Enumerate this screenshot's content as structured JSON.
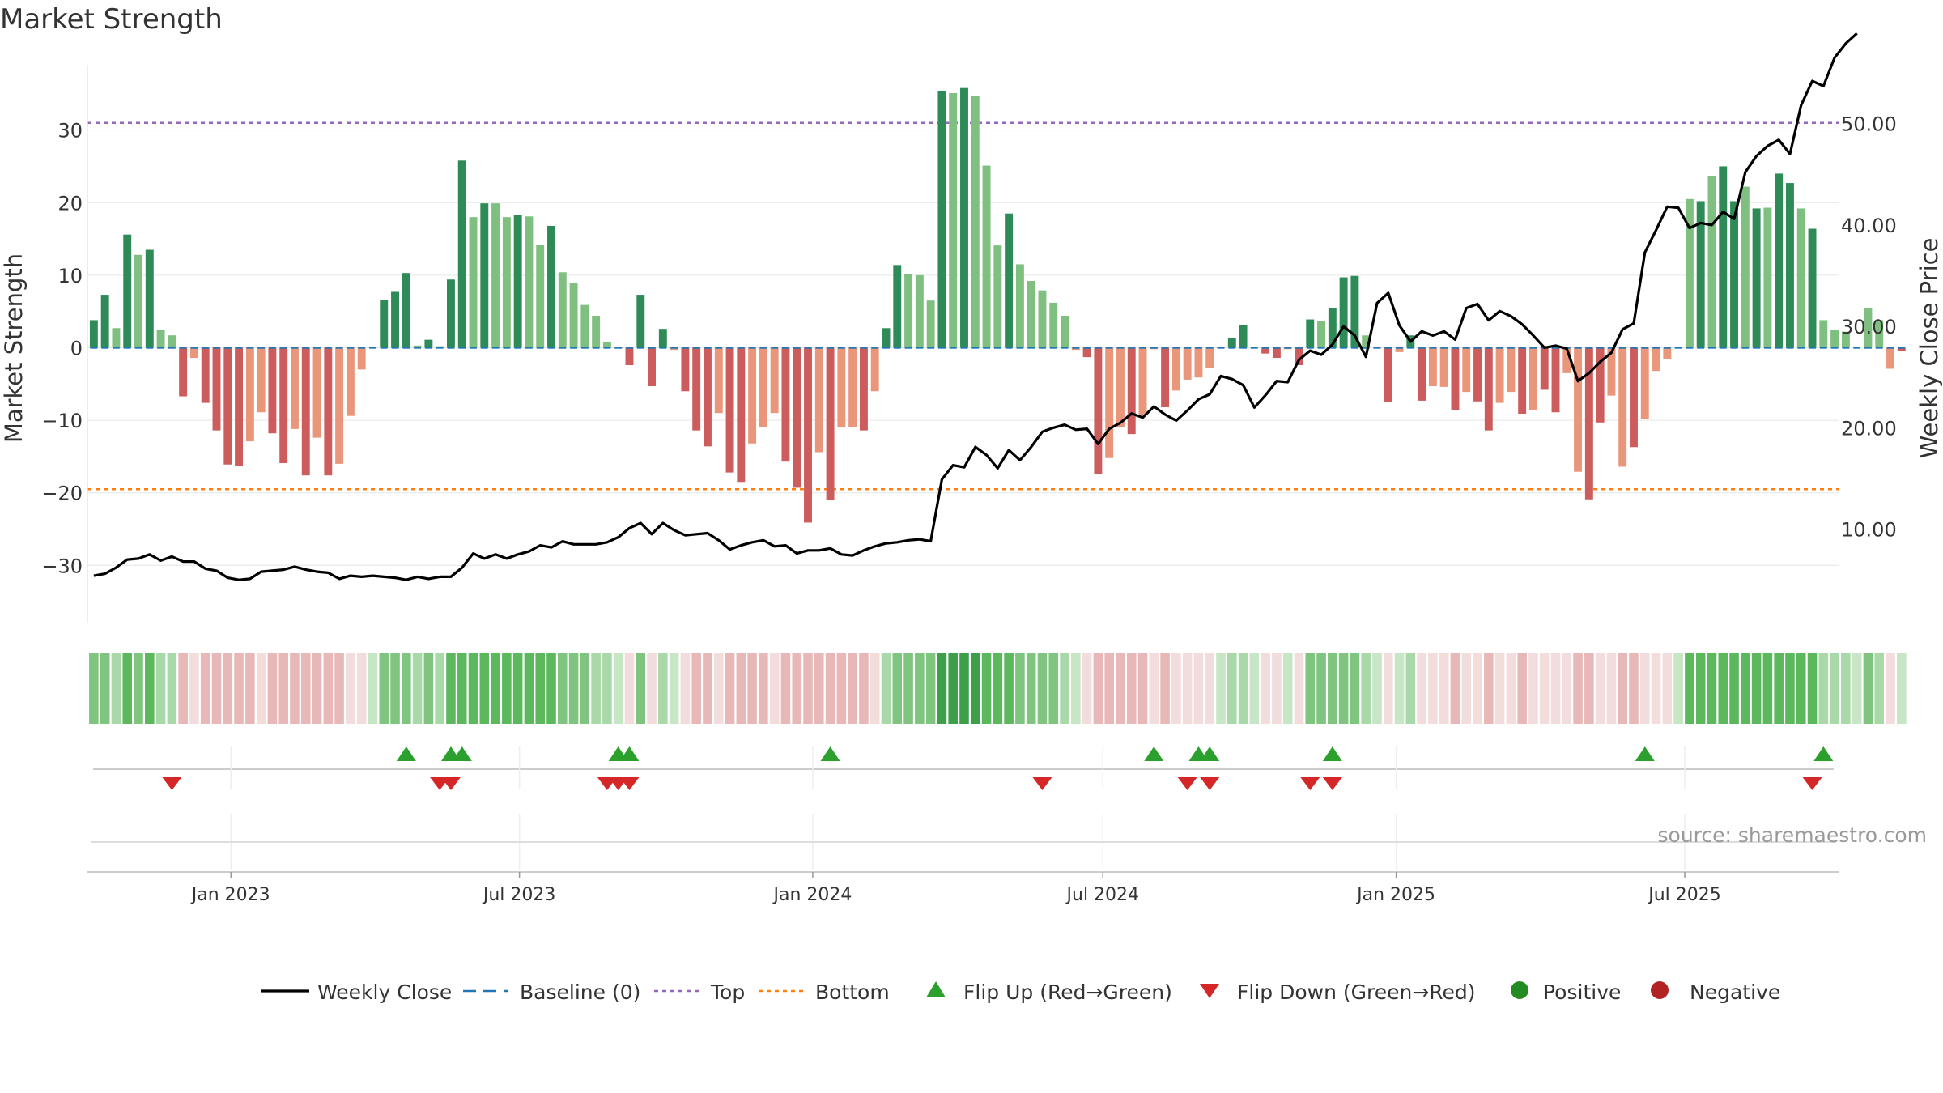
{
  "title": "Market Strength",
  "source": "source: sharemaestro.com",
  "colors": {
    "strong_green": "#2e8b57",
    "light_green": "#7fbf7f",
    "strong_red": "#cd5c5c",
    "light_red": "#e9967a",
    "close_line": "#000000",
    "baseline": "#1f77b4",
    "top": "#9467bd",
    "bottom": "#ff7f0e",
    "flip_up": "#2ca02c",
    "flip_down": "#d62728",
    "positive": "#228b22",
    "negative": "#b22222"
  },
  "chart_data": {
    "type": "bar",
    "ylabel_left": "Market Strength",
    "ylabel_right": "Weekly Close Price",
    "y_left_ticks": [
      30,
      20,
      10,
      0,
      -10,
      -20,
      -30
    ],
    "y_left_tick_labels": [
      "30",
      "20",
      "10",
      "0",
      "−10",
      "−20",
      "−30"
    ],
    "y_left_range": [
      -38,
      39
    ],
    "y_right_ticks": [
      10,
      20,
      30,
      40,
      50
    ],
    "y_right_tick_labels": [
      "10.00",
      "20.00",
      "30.00",
      "40.00",
      "50.00"
    ],
    "y_right_range": [
      0.7,
      55.8
    ],
    "x_ticks": [
      "2023-01-01",
      "2023-07-01",
      "2024-01-01",
      "2024-07-01",
      "2025-01-01",
      "2025-07-01"
    ],
    "x_tick_labels": [
      "Jan 2023",
      "Jul 2023",
      "Jan 2024",
      "Jul 2024",
      "Jan 2025",
      "Jul 2025"
    ],
    "x_range": [
      "2022-10-03",
      "2025-10-06"
    ],
    "first_week": "2022-10-07",
    "top_level": 31,
    "bottom_level": -19.5,
    "baseline_level": 0,
    "strength": [
      3.8,
      7.3,
      2.7,
      15.6,
      12.8,
      13.5,
      2.5,
      1.7,
      -6.7,
      -1.4,
      -7.6,
      -11.4,
      -16.1,
      -16.3,
      -12.9,
      -8.9,
      -11.8,
      -15.9,
      -11.2,
      -17.6,
      -12.4,
      -17.6,
      -16.0,
      -9.4,
      -3.0,
      0.1,
      6.6,
      7.7,
      10.3,
      0.3,
      1.1,
      0.2,
      9.4,
      25.8,
      18.0,
      19.9,
      19.9,
      18.0,
      18.3,
      18.1,
      14.2,
      16.8,
      10.4,
      8.9,
      5.9,
      4.4,
      0.8,
      -0.1,
      -2.4,
      7.3,
      -5.3,
      2.6,
      -0.3,
      -6.0,
      -11.4,
      -13.6,
      -9.0,
      -17.2,
      -18.5,
      -13.2,
      -10.9,
      -9.0,
      -15.7,
      -19.3,
      -24.1,
      -14.4,
      -21.0,
      -11.0,
      -10.9,
      -11.4,
      -6.0,
      2.7,
      11.4,
      10.1,
      10.0,
      6.5,
      35.4,
      35.1,
      35.8,
      34.7,
      25.1,
      14.1,
      18.5,
      11.5,
      9.2,
      7.9,
      6.2,
      4.4,
      -0.3,
      -1.3,
      -17.4,
      -15.2,
      -10.9,
      -11.9,
      -9.3,
      -0.2,
      -8.2,
      -5.9,
      -4.4,
      -4.1,
      -2.8,
      -0.1,
      1.4,
      3.1,
      0.1,
      -0.8,
      -1.4,
      -0.2,
      -2.4,
      3.9,
      3.7,
      5.5,
      9.7,
      9.9,
      1.7,
      -0.1,
      -7.5,
      -0.6,
      1.7,
      -7.3,
      -5.3,
      -5.4,
      -8.6,
      -6.1,
      -7.4,
      -11.4,
      -7.6,
      -6.1,
      -9.1,
      -8.6,
      -5.8,
      -8.9,
      -3.5,
      -17.1,
      -20.9,
      -10.3,
      -6.6,
      -16.4,
      -13.7,
      -9.8,
      -3.2,
      -1.6,
      0.0,
      20.5,
      20.2,
      23.6,
      25.0,
      20.2,
      22.2,
      19.2,
      19.3,
      24.0,
      22.7,
      19.2,
      16.4,
      3.8,
      2.5,
      2.2,
      0.1,
      5.5,
      3.8,
      -2.9,
      -0.4
    ],
    "bar_shade": [
      "S",
      "S",
      "L",
      "S",
      "L",
      "S",
      "L",
      "L",
      "S",
      "L",
      "S",
      "S",
      "S",
      "S",
      "L",
      "L",
      "S",
      "S",
      "L",
      "S",
      "L",
      "S",
      "L",
      "L",
      "L",
      "L",
      "S",
      "S",
      "S",
      "L",
      "S",
      "L",
      "S",
      "S",
      "L",
      "S",
      "L",
      "L",
      "S",
      "L",
      "L",
      "S",
      "L",
      "L",
      "L",
      "L",
      "L",
      "L",
      "S",
      "S",
      "S",
      "S",
      "L",
      "S",
      "S",
      "S",
      "L",
      "S",
      "S",
      "L",
      "L",
      "L",
      "S",
      "S",
      "S",
      "L",
      "S",
      "L",
      "L",
      "S",
      "L",
      "S",
      "S",
      "L",
      "L",
      "L",
      "S",
      "L",
      "S",
      "L",
      "L",
      "L",
      "S",
      "L",
      "L",
      "L",
      "L",
      "L",
      "L",
      "S",
      "S",
      "L",
      "L",
      "S",
      "L",
      "L",
      "S",
      "L",
      "L",
      "L",
      "L",
      "L",
      "S",
      "S",
      "L",
      "S",
      "S",
      "L",
      "S",
      "S",
      "L",
      "S",
      "S",
      "S",
      "L",
      "L",
      "S",
      "L",
      "S",
      "S",
      "L",
      "L",
      "S",
      "L",
      "S",
      "S",
      "L",
      "L",
      "S",
      "L",
      "S",
      "S",
      "L",
      "L",
      "S",
      "S",
      "L",
      "L",
      "S",
      "L",
      "L",
      "L",
      "L",
      "L",
      "S",
      "L",
      "S",
      "S",
      "L",
      "S",
      "L",
      "S",
      "S",
      "L",
      "S",
      "L",
      "L",
      "L",
      "L",
      "L",
      "L",
      "L",
      "S",
      "L",
      "S",
      "L"
    ],
    "close": [
      5.4,
      5.6,
      6.2,
      7.0,
      7.1,
      7.5,
      6.9,
      7.3,
      6.8,
      6.8,
      6.1,
      5.9,
      5.2,
      5.0,
      5.1,
      5.8,
      5.9,
      6.0,
      6.3,
      6.0,
      5.8,
      5.7,
      5.1,
      5.4,
      5.3,
      5.4,
      5.3,
      5.2,
      5.0,
      5.3,
      5.1,
      5.3,
      5.3,
      6.2,
      7.6,
      7.1,
      7.5,
      7.1,
      7.5,
      7.8,
      8.4,
      8.2,
      8.8,
      8.5,
      8.5,
      8.5,
      8.7,
      9.2,
      10.1,
      10.6,
      9.5,
      10.6,
      9.9,
      9.4,
      9.5,
      9.6,
      8.9,
      8.0,
      8.4,
      8.7,
      8.9,
      8.3,
      8.4,
      7.6,
      7.9,
      7.9,
      8.1,
      7.5,
      7.4,
      7.9,
      8.3,
      8.6,
      8.7,
      8.9,
      9.0,
      8.8,
      14.9,
      16.3,
      16.1,
      18.1,
      17.3,
      16.0,
      17.8,
      16.8,
      18.1,
      19.6,
      20.0,
      20.3,
      19.8,
      19.9,
      18.4,
      19.9,
      20.5,
      21.4,
      21.0,
      22.1,
      21.3,
      20.7,
      21.7,
      22.8,
      23.3,
      25.1,
      24.8,
      24.2,
      22.0,
      23.2,
      24.6,
      24.5,
      26.7,
      27.6,
      27.2,
      28.2,
      30.0,
      29.1,
      27.0,
      32.3,
      33.3,
      30.1,
      28.5,
      29.5,
      29.1,
      29.5,
      28.7,
      31.8,
      32.2,
      30.6,
      31.5,
      31.0,
      30.2,
      29.1,
      27.9,
      28.1,
      27.8,
      24.6,
      25.4,
      26.5,
      27.4,
      29.7,
      30.3,
      37.3,
      39.5,
      41.8,
      41.7,
      39.7,
      40.2,
      40.0,
      41.3,
      40.6,
      45.2,
      46.8,
      47.8,
      48.4,
      47.0,
      51.8,
      54.2,
      53.7,
      56.5,
      57.9,
      58.9
    ]
  },
  "bands": {
    "shade": [
      2,
      2,
      1,
      3,
      2,
      3,
      1,
      1,
      -2,
      -1,
      -2,
      -2,
      -2,
      -2,
      -2,
      -1,
      -2,
      -2,
      -2,
      -2,
      -2,
      -2,
      -2,
      -1,
      -1,
      0,
      2,
      2,
      2,
      1,
      2,
      1,
      3,
      3,
      3,
      3,
      3,
      3,
      3,
      3,
      3,
      3,
      2,
      2,
      2,
      1,
      1,
      0,
      -1,
      2,
      -1,
      1,
      0,
      -1,
      -2,
      -2,
      -1,
      -2,
      -2,
      -2,
      -2,
      -1,
      -2,
      -2,
      -2,
      -2,
      -2,
      -2,
      -2,
      -2,
      -1,
      1,
      2,
      2,
      2,
      2,
      4,
      4,
      4,
      4,
      3,
      3,
      3,
      2,
      2,
      2,
      2,
      1,
      0,
      -1,
      -2,
      -2,
      -2,
      -2,
      -2,
      -1,
      -2,
      -1,
      -1,
      -1,
      -1,
      0,
      1,
      1,
      0,
      -1,
      -1,
      0,
      -1,
      2,
      2,
      2,
      2,
      2,
      1,
      0,
      -1,
      0,
      1,
      -1,
      -1,
      -1,
      -2,
      -1,
      -1,
      -2,
      -1,
      -1,
      -2,
      -1,
      -1,
      -1,
      -1,
      -2,
      -2,
      -1,
      -1,
      -2,
      -2,
      -1,
      -1,
      -1,
      0,
      3,
      3,
      3,
      3,
      3,
      3,
      3,
      3,
      3,
      3,
      3,
      3,
      1,
      1,
      1,
      0,
      2,
      1,
      -1,
      0
    ],
    "green": [
      "#c6e6c6",
      "#a9d8a9",
      "#7fc47f",
      "#5cb85c",
      "#3d9f4a"
    ],
    "red": [
      "#f2dcdc",
      "#e8b8b8",
      "#d99090",
      "#cc7070"
    ]
  },
  "flips": {
    "up": [
      "2023-04-21",
      "2023-05-19",
      "2023-05-26",
      "2023-09-01",
      "2023-09-08",
      "2024-01-12",
      "2024-08-02",
      "2024-08-30",
      "2024-09-06",
      "2024-11-22",
      "2025-06-06",
      "2025-09-26"
    ],
    "down": [
      "2022-11-25",
      "2023-05-12",
      "2023-05-19",
      "2023-08-25",
      "2023-09-01",
      "2023-09-08",
      "2024-05-24",
      "2024-08-23",
      "2024-09-06",
      "2024-11-08",
      "2024-11-22",
      "2025-09-19"
    ]
  },
  "legend": [
    {
      "key": "close",
      "label": "Weekly Close"
    },
    {
      "key": "baseline",
      "label": "Baseline (0)"
    },
    {
      "key": "top",
      "label": "Top"
    },
    {
      "key": "bottom",
      "label": "Bottom"
    },
    {
      "key": "flip_up",
      "label": "Flip Up (Red→Green)"
    },
    {
      "key": "flip_down",
      "label": "Flip Down (Green→Red)"
    },
    {
      "key": "positive",
      "label": "Positive"
    },
    {
      "key": "negative",
      "label": "Negative"
    }
  ]
}
